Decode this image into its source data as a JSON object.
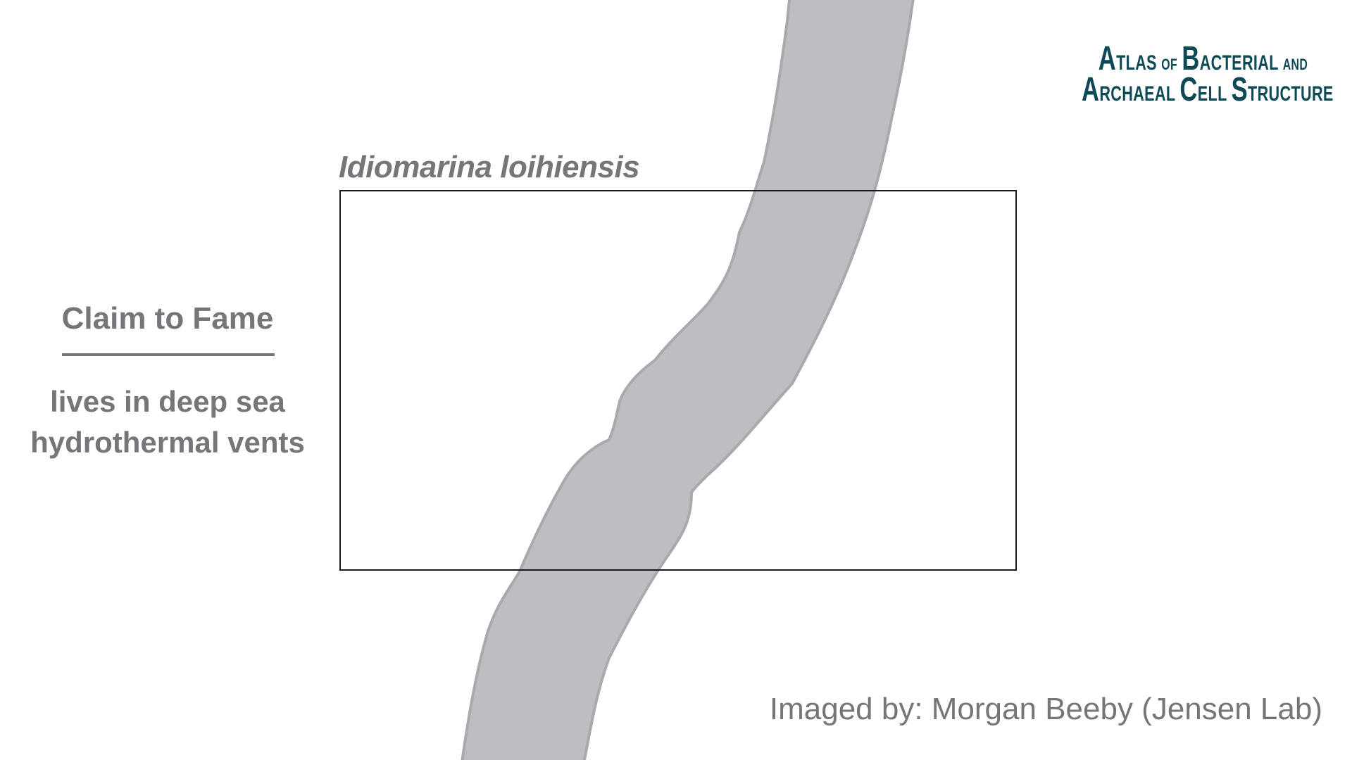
{
  "logo": {
    "line1_cap": "A",
    "line1_rest": "tlas",
    "line1_of": "of",
    "line1_b": "B",
    "line1_bact": "acterial",
    "line1_and": "and",
    "line2_a": "A",
    "line2_rchaeal": "rchaeal",
    "line2_c": "C",
    "line2_ell": "ell",
    "line2_s": "S",
    "line2_tructure": "tructure"
  },
  "species_name": "Idiomarina loihiensis",
  "claim": {
    "title": "Claim to Fame",
    "line1": "lives in deep sea",
    "line2": "hydrothermal vents"
  },
  "credit": "Imaged by: Morgan Beeby (Jensen Lab)",
  "colors": {
    "cell_fill": "#bdbec1",
    "cell_outline": "#a9aaad",
    "text_gray": "#75767a",
    "logo_teal": "#0e4a56",
    "frame": "#1a1a1a"
  }
}
